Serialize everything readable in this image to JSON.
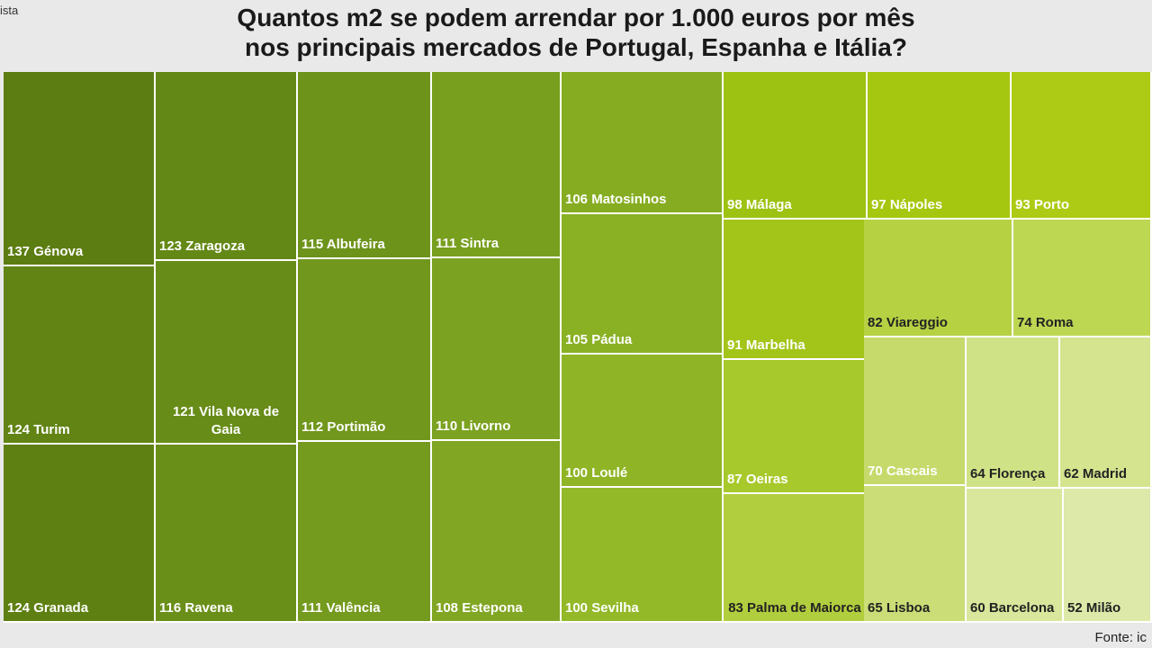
{
  "corner_text": "ista",
  "source": "Fonte: ic",
  "chart_data": {
    "type": "treemap",
    "title_lines": [
      "Quantos m2 se podem arrendar por 1.000 euros por mês",
      "nos principais mercados de Portugal, Espanha e Itália?"
    ],
    "items": [
      {
        "label": "137 Génova",
        "value": 137,
        "color": "#5c7d11",
        "text": "light"
      },
      {
        "label": "124 Turim",
        "value": 124,
        "color": "#618414",
        "text": "light"
      },
      {
        "label": "124 Granada",
        "value": 124,
        "color": "#5e8012",
        "text": "light"
      },
      {
        "label": "123 Zaragoza",
        "value": 123,
        "color": "#648816",
        "text": "light"
      },
      {
        "label": "121 Vila Nova de Gaia",
        "value": 121,
        "color": "#678c18",
        "text": "light"
      },
      {
        "label": "116 Ravena",
        "value": 116,
        "color": "#6a8f19",
        "text": "light"
      },
      {
        "label": "115 Albufeira",
        "value": 115,
        "color": "#6e931b",
        "text": "light"
      },
      {
        "label": "112 Portimão",
        "value": 112,
        "color": "#71971c",
        "text": "light"
      },
      {
        "label": "111 Valência",
        "value": 111,
        "color": "#749a1e",
        "text": "light"
      },
      {
        "label": "111 Sintra",
        "value": 111,
        "color": "#799f1f",
        "text": "light"
      },
      {
        "label": "110 Livorno",
        "value": 110,
        "color": "#7ca221",
        "text": "light"
      },
      {
        "label": "108 Estepona",
        "value": 108,
        "color": "#80a623",
        "text": "light"
      },
      {
        "label": "106 Matosinhos",
        "value": 106,
        "color": "#86ad22",
        "text": "light"
      },
      {
        "label": "105 Pádua",
        "value": 105,
        "color": "#8ab124",
        "text": "light"
      },
      {
        "label": "100 Loulé",
        "value": 100,
        "color": "#8fb526",
        "text": "light"
      },
      {
        "label": "100 Sevilha",
        "value": 100,
        "color": "#93b928",
        "text": "light"
      },
      {
        "label": "98 Málaga",
        "value": 98,
        "color": "#9dc212",
        "text": "light"
      },
      {
        "label": "91 Marbelha",
        "value": 91,
        "color": "#a3c51a",
        "text": "light"
      },
      {
        "label": "87 Oeiras",
        "value": 87,
        "color": "#a8c92c",
        "text": "light"
      },
      {
        "label": "83 Palma de Maiorca",
        "value": 83,
        "color": "#b1ce3e",
        "text": "dark"
      },
      {
        "label": "97 Nápoles",
        "value": 97,
        "color": "#a6c70f",
        "text": "light"
      },
      {
        "label": "93 Porto",
        "value": 93,
        "color": "#adcb14",
        "text": "light"
      },
      {
        "label": "82 Viareggio",
        "value": 82,
        "color": "#b6d142",
        "text": "dark"
      },
      {
        "label": "74 Roma",
        "value": 74,
        "color": "#bed753",
        "text": "dark"
      },
      {
        "label": "70 Cascais",
        "value": 70,
        "color": "#c5da6b",
        "text": "light"
      },
      {
        "label": "65 Lisboa",
        "value": 65,
        "color": "#cadd76",
        "text": "dark"
      },
      {
        "label": "64 Florença",
        "value": 64,
        "color": "#d0e286",
        "text": "dark"
      },
      {
        "label": "62 Madrid",
        "value": 62,
        "color": "#d4e48f",
        "text": "dark"
      },
      {
        "label": "60 Barcelona",
        "value": 60,
        "color": "#d8e79c",
        "text": "dark"
      },
      {
        "label": "52 Milão",
        "value": 52,
        "color": "#dde9a8",
        "text": "dark"
      }
    ]
  }
}
